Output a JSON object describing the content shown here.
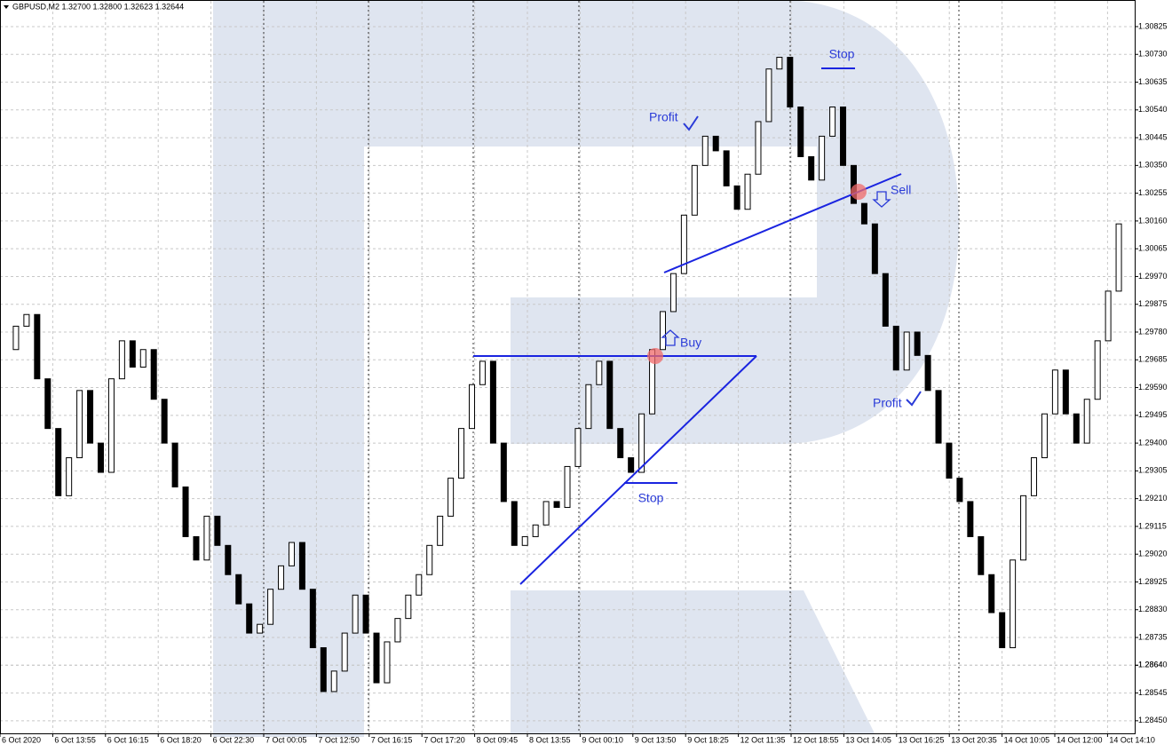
{
  "chart_data": {
    "type": "candlestick",
    "header": "GBPUSD,M2  1.32700 1.32800 1.32623 1.32644",
    "values": [
      1.2972,
      1.298,
      1.2984,
      1.2962,
      1.2945,
      1.2922,
      1.2935,
      1.2958,
      1.294,
      1.293,
      1.2962,
      1.2975,
      1.2966,
      1.2972,
      1.2955,
      1.294,
      1.2925,
      1.2908,
      1.29,
      1.2915,
      1.2905,
      1.2895,
      1.2885,
      1.2875,
      1.2878,
      1.289,
      1.2898,
      1.2906,
      1.289,
      1.287,
      1.2855,
      1.2862,
      1.2875,
      1.2888,
      1.2875,
      1.2858,
      1.2872,
      1.288,
      1.2888,
      1.2895,
      1.2905,
      1.2915,
      1.2928,
      1.2945,
      1.296,
      1.2968,
      1.294,
      1.292,
      1.2905,
      1.2908,
      1.2912,
      1.292,
      1.2918,
      1.2932,
      1.2945,
      1.296,
      1.2968,
      1.2945,
      1.2935,
      1.293,
      1.295,
      1.2972,
      1.2985,
      1.2998,
      1.3018,
      1.3035,
      1.3045,
      1.304,
      1.3028,
      1.302,
      1.3032,
      1.305,
      1.3068,
      1.3072,
      1.3055,
      1.3038,
      1.303,
      1.3045,
      1.3055,
      1.3035,
      1.3022,
      1.3015,
      1.2998,
      1.298,
      1.2965,
      1.2978,
      1.297,
      1.2958,
      1.294,
      1.2928,
      1.292,
      1.2908,
      1.2895,
      1.2882,
      1.287,
      1.29,
      1.2922,
      1.2935,
      1.295,
      1.2965,
      1.295,
      1.294,
      1.2955,
      1.2975,
      1.2992,
      1.3015
    ],
    "up_color": "#ffffff",
    "down_color": "#000000",
    "ylim": [
      1.28407,
      1.30913
    ],
    "yticks": [
      {
        "value": 1.2845,
        "label": "1.28450"
      },
      1.28545,
      1.2864,
      {
        "value": 1.2864,
        "label": "1.28640"
      },
      1.28735,
      {
        "value": 1.2883,
        "label": "1.28830"
      },
      1.28925,
      {
        "value": 1.2902,
        "label": "1.29020"
      },
      1.29115,
      {
        "value": 1.2921,
        "label": "1.29210"
      },
      1.29305,
      {
        "value": 1.294,
        "label": "1.29400"
      },
      1.29495,
      {
        "value": 1.2959,
        "label": "1.29590"
      },
      1.29685,
      {
        "value": 1.2978,
        "label": "1.29780"
      },
      1.29875,
      {
        "value": 1.2997,
        "label": "1.29970"
      },
      1.30065,
      {
        "value": 1.3016,
        "label": "1.30160"
      },
      1.30255,
      {
        "value": 1.3035,
        "label": "1.30350"
      },
      1.30445,
      {
        "value": 1.3054,
        "label": "1.30540"
      },
      1.30635,
      {
        "value": 1.3073,
        "label": "1.30730"
      },
      1.30825
    ],
    "x_labels": [
      "6 Oct 2020",
      "6 Oct 13:55",
      "6 Oct 16:15",
      "6 Oct 18:20",
      "6 Oct 22:30",
      "7 Oct 00:05",
      "7 Oct 12:50",
      "7 Oct 16:15",
      "7 Oct 17:20",
      "8 Oct 09:45",
      "8 Oct 13:55",
      "9 Oct 00:10",
      "9 Oct 13:50",
      "9 Oct 18:25",
      "12 Oct 11:35",
      "12 Oct 18:55",
      "13 Oct 14:05",
      "13 Oct 16:25",
      "13 Oct 20:35",
      "14 Oct 10:05",
      "14 Oct 12:00",
      "14 Oct 14:10"
    ],
    "grid": true,
    "annotations": [
      "Stop",
      "Profit",
      "Buy",
      "Sell",
      "Stop",
      "Profit"
    ]
  }
}
